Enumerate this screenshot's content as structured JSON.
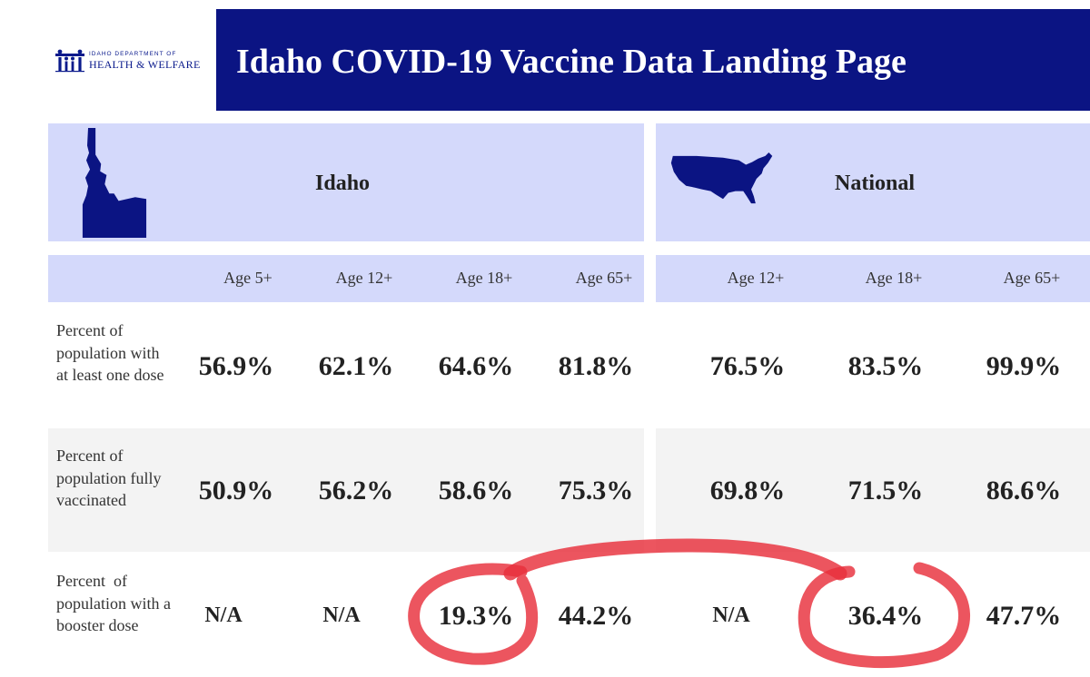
{
  "header": {
    "logo": {
      "line1": "IDAHO DEPARTMENT OF",
      "line2": "HEALTH & WELFARE"
    },
    "title": "Idaho COVID-19 Vaccine Data Landing Page"
  },
  "regions": {
    "idaho": {
      "name": "Idaho",
      "ages": [
        "Age 5+",
        "Age 12+",
        "Age 18+",
        "Age 65+"
      ]
    },
    "national": {
      "name": "National",
      "ages": [
        "Age 12+",
        "Age 18+",
        "Age 65+"
      ]
    }
  },
  "rows": [
    {
      "label": "Percent of population with at least one dose",
      "idaho": [
        "56.9%",
        "62.1%",
        "64.6%",
        "81.8%"
      ],
      "national": [
        "76.5%",
        "83.5%",
        "99.9%"
      ]
    },
    {
      "label": "Percent of population fully vaccinated",
      "idaho": [
        "50.9%",
        "56.2%",
        "58.6%",
        "75.3%"
      ],
      "national": [
        "69.8%",
        "71.5%",
        "86.6%"
      ]
    },
    {
      "label": "Percent  of population with a booster dose",
      "idaho": [
        "N/A",
        "N/A",
        "19.3%",
        "44.2%"
      ],
      "national": [
        "N/A",
        "36.4%",
        "47.7%"
      ]
    }
  ],
  "colors": {
    "banner": "#0b1483",
    "header_fill": "#d4d9fb",
    "stripe": "#f3f3f3",
    "annotation": "#e8303c"
  }
}
